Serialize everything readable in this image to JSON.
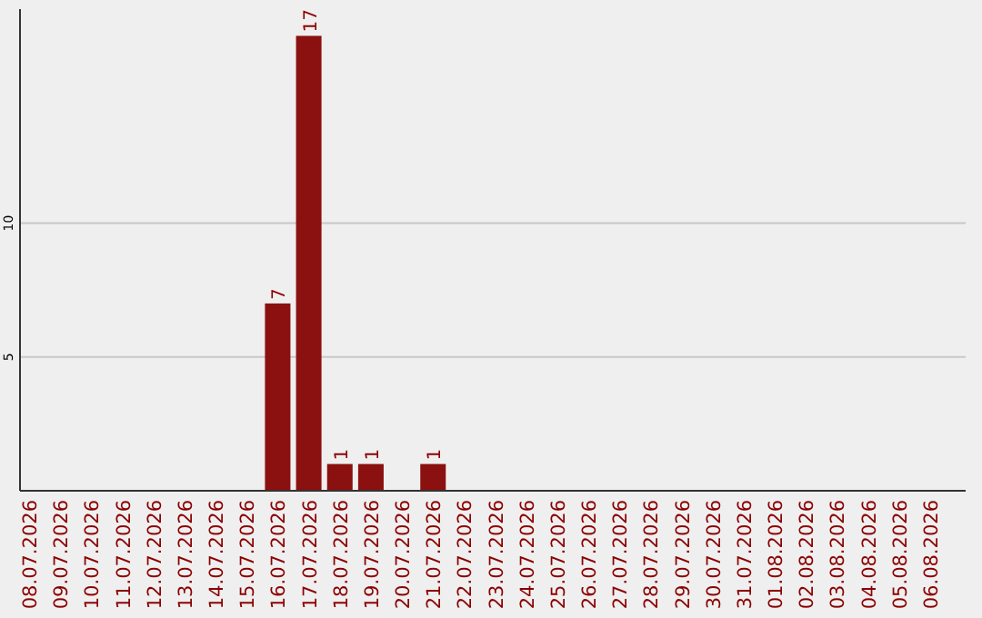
{
  "chart_data": {
    "type": "bar",
    "categories": [
      "08.07.2026",
      "09.07.2026",
      "10.07.2026",
      "11.07.2026",
      "12.07.2026",
      "13.07.2026",
      "14.07.2026",
      "15.07.2026",
      "16.07.2026",
      "17.07.2026",
      "18.07.2026",
      "19.07.2026",
      "20.07.2026",
      "21.07.2026",
      "22.07.2026",
      "23.07.2026",
      "24.07.2026",
      "25.07.2026",
      "26.07.2026",
      "27.07.2026",
      "28.07.2026",
      "29.07.2026",
      "30.07.2026",
      "31.07.2026",
      "01.08.2026",
      "02.08.2026",
      "03.08.2026",
      "04.08.2026",
      "05.08.2026",
      "06.08.2026"
    ],
    "values": [
      0,
      0,
      0,
      0,
      0,
      0,
      0,
      0,
      7,
      17,
      1,
      1,
      0,
      1,
      0,
      0,
      0,
      0,
      0,
      0,
      0,
      0,
      0,
      0,
      0,
      0,
      0,
      0,
      0,
      0
    ],
    "value_labels": [
      null,
      null,
      null,
      null,
      null,
      null,
      null,
      null,
      "7",
      "17",
      "1",
      "1",
      null,
      "1",
      null,
      null,
      null,
      null,
      null,
      null,
      null,
      null,
      null,
      null,
      null,
      null,
      null,
      null,
      null,
      null
    ],
    "color": "#8b1010",
    "ylim": [
      0,
      18
    ],
    "yticks": [
      5,
      10
    ],
    "grid": "y"
  }
}
